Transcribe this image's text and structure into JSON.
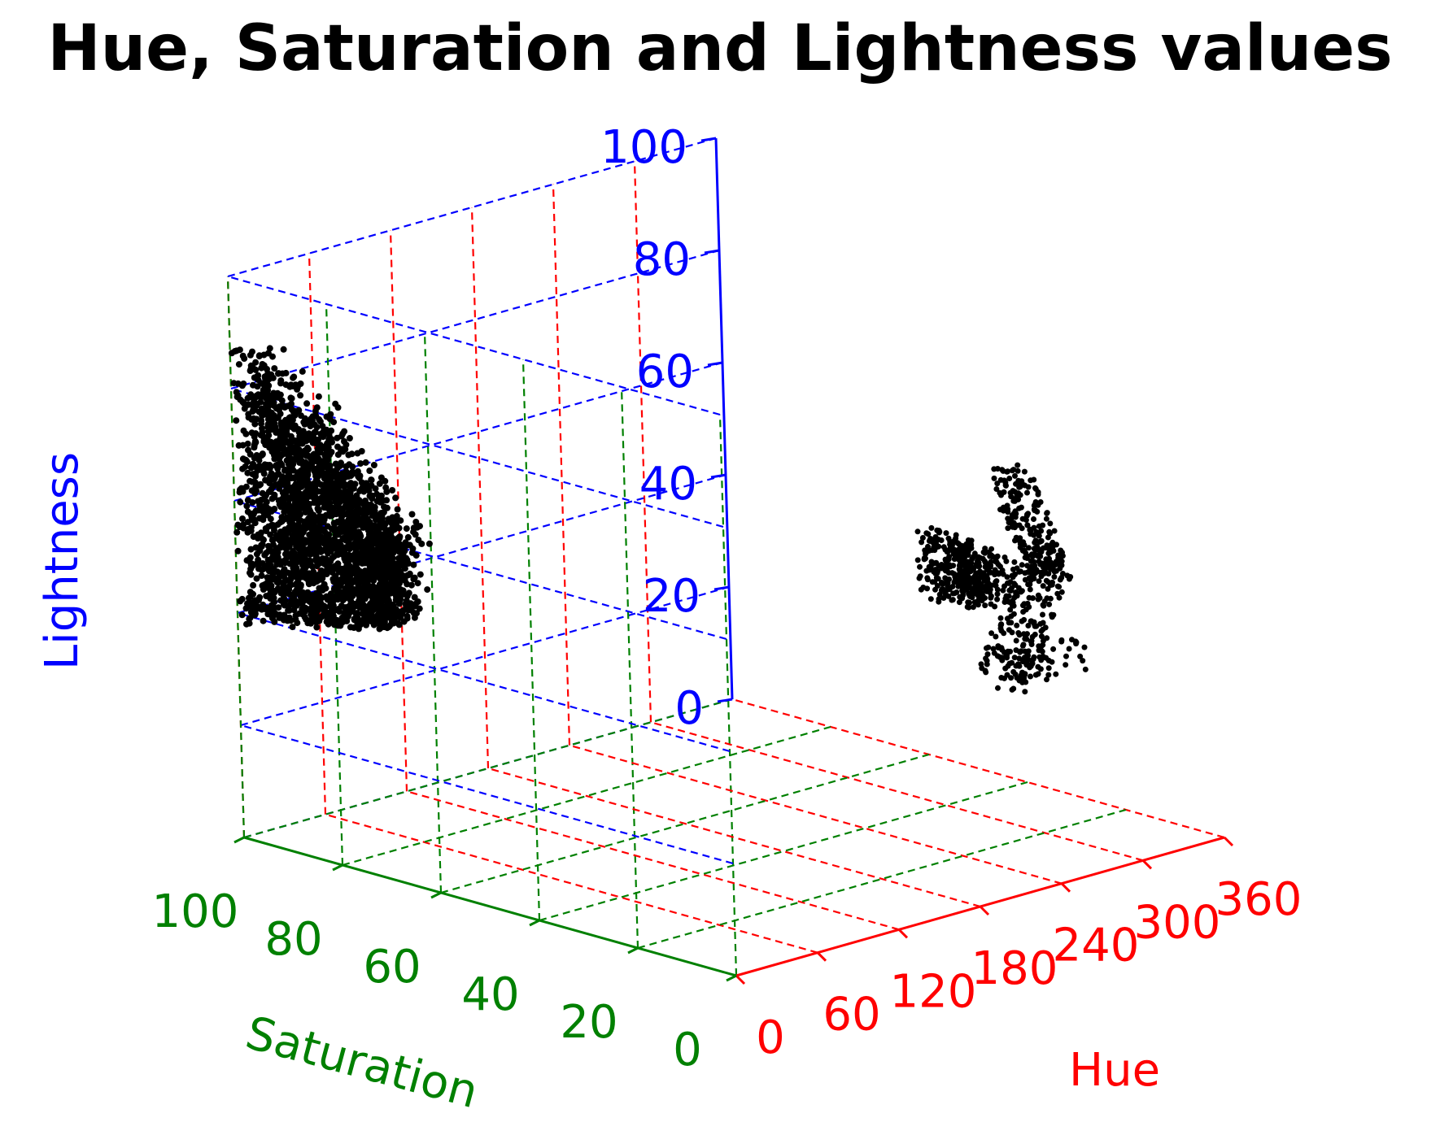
{
  "chart_data": {
    "type": "scatter",
    "projection": "3d",
    "title": "Hue, Saturation and Lightness values",
    "axes": {
      "x": {
        "label": "Hue",
        "range": [
          0,
          360
        ],
        "ticks": [
          "0",
          "60",
          "120",
          "180",
          "240",
          "300",
          "360"
        ],
        "color": "#ff0000"
      },
      "y": {
        "label": "Saturation",
        "range": [
          0,
          100
        ],
        "ticks": [
          "0",
          "20",
          "40",
          "60",
          "80",
          "100"
        ],
        "color": "#008000"
      },
      "z": {
        "label": "Lightness",
        "range": [
          0,
          100
        ],
        "ticks": [
          "0",
          "20",
          "40",
          "60",
          "80",
          "100"
        ],
        "color": "#0000ff"
      }
    },
    "grid": true,
    "grid_style": "dashed",
    "marker_color": "#000000",
    "clusters": [
      {
        "description": "large cluster at low hue, high saturation",
        "hue_range": [
          0,
          40
        ],
        "saturation_range": [
          70,
          100
        ],
        "lightness_range": [
          38,
          89
        ]
      },
      {
        "description": "cluster near hue 180-215, low saturation",
        "hue_range": [
          180,
          215
        ],
        "saturation_range": [
          0,
          12
        ],
        "lightness_range": [
          40,
          68
        ]
      },
      {
        "description": "V-shaped cluster near hue 215-270, low saturation",
        "hue_range": [
          215,
          270
        ],
        "saturation_range": [
          0,
          10
        ],
        "lightness_range": [
          35,
          75
        ]
      }
    ]
  }
}
